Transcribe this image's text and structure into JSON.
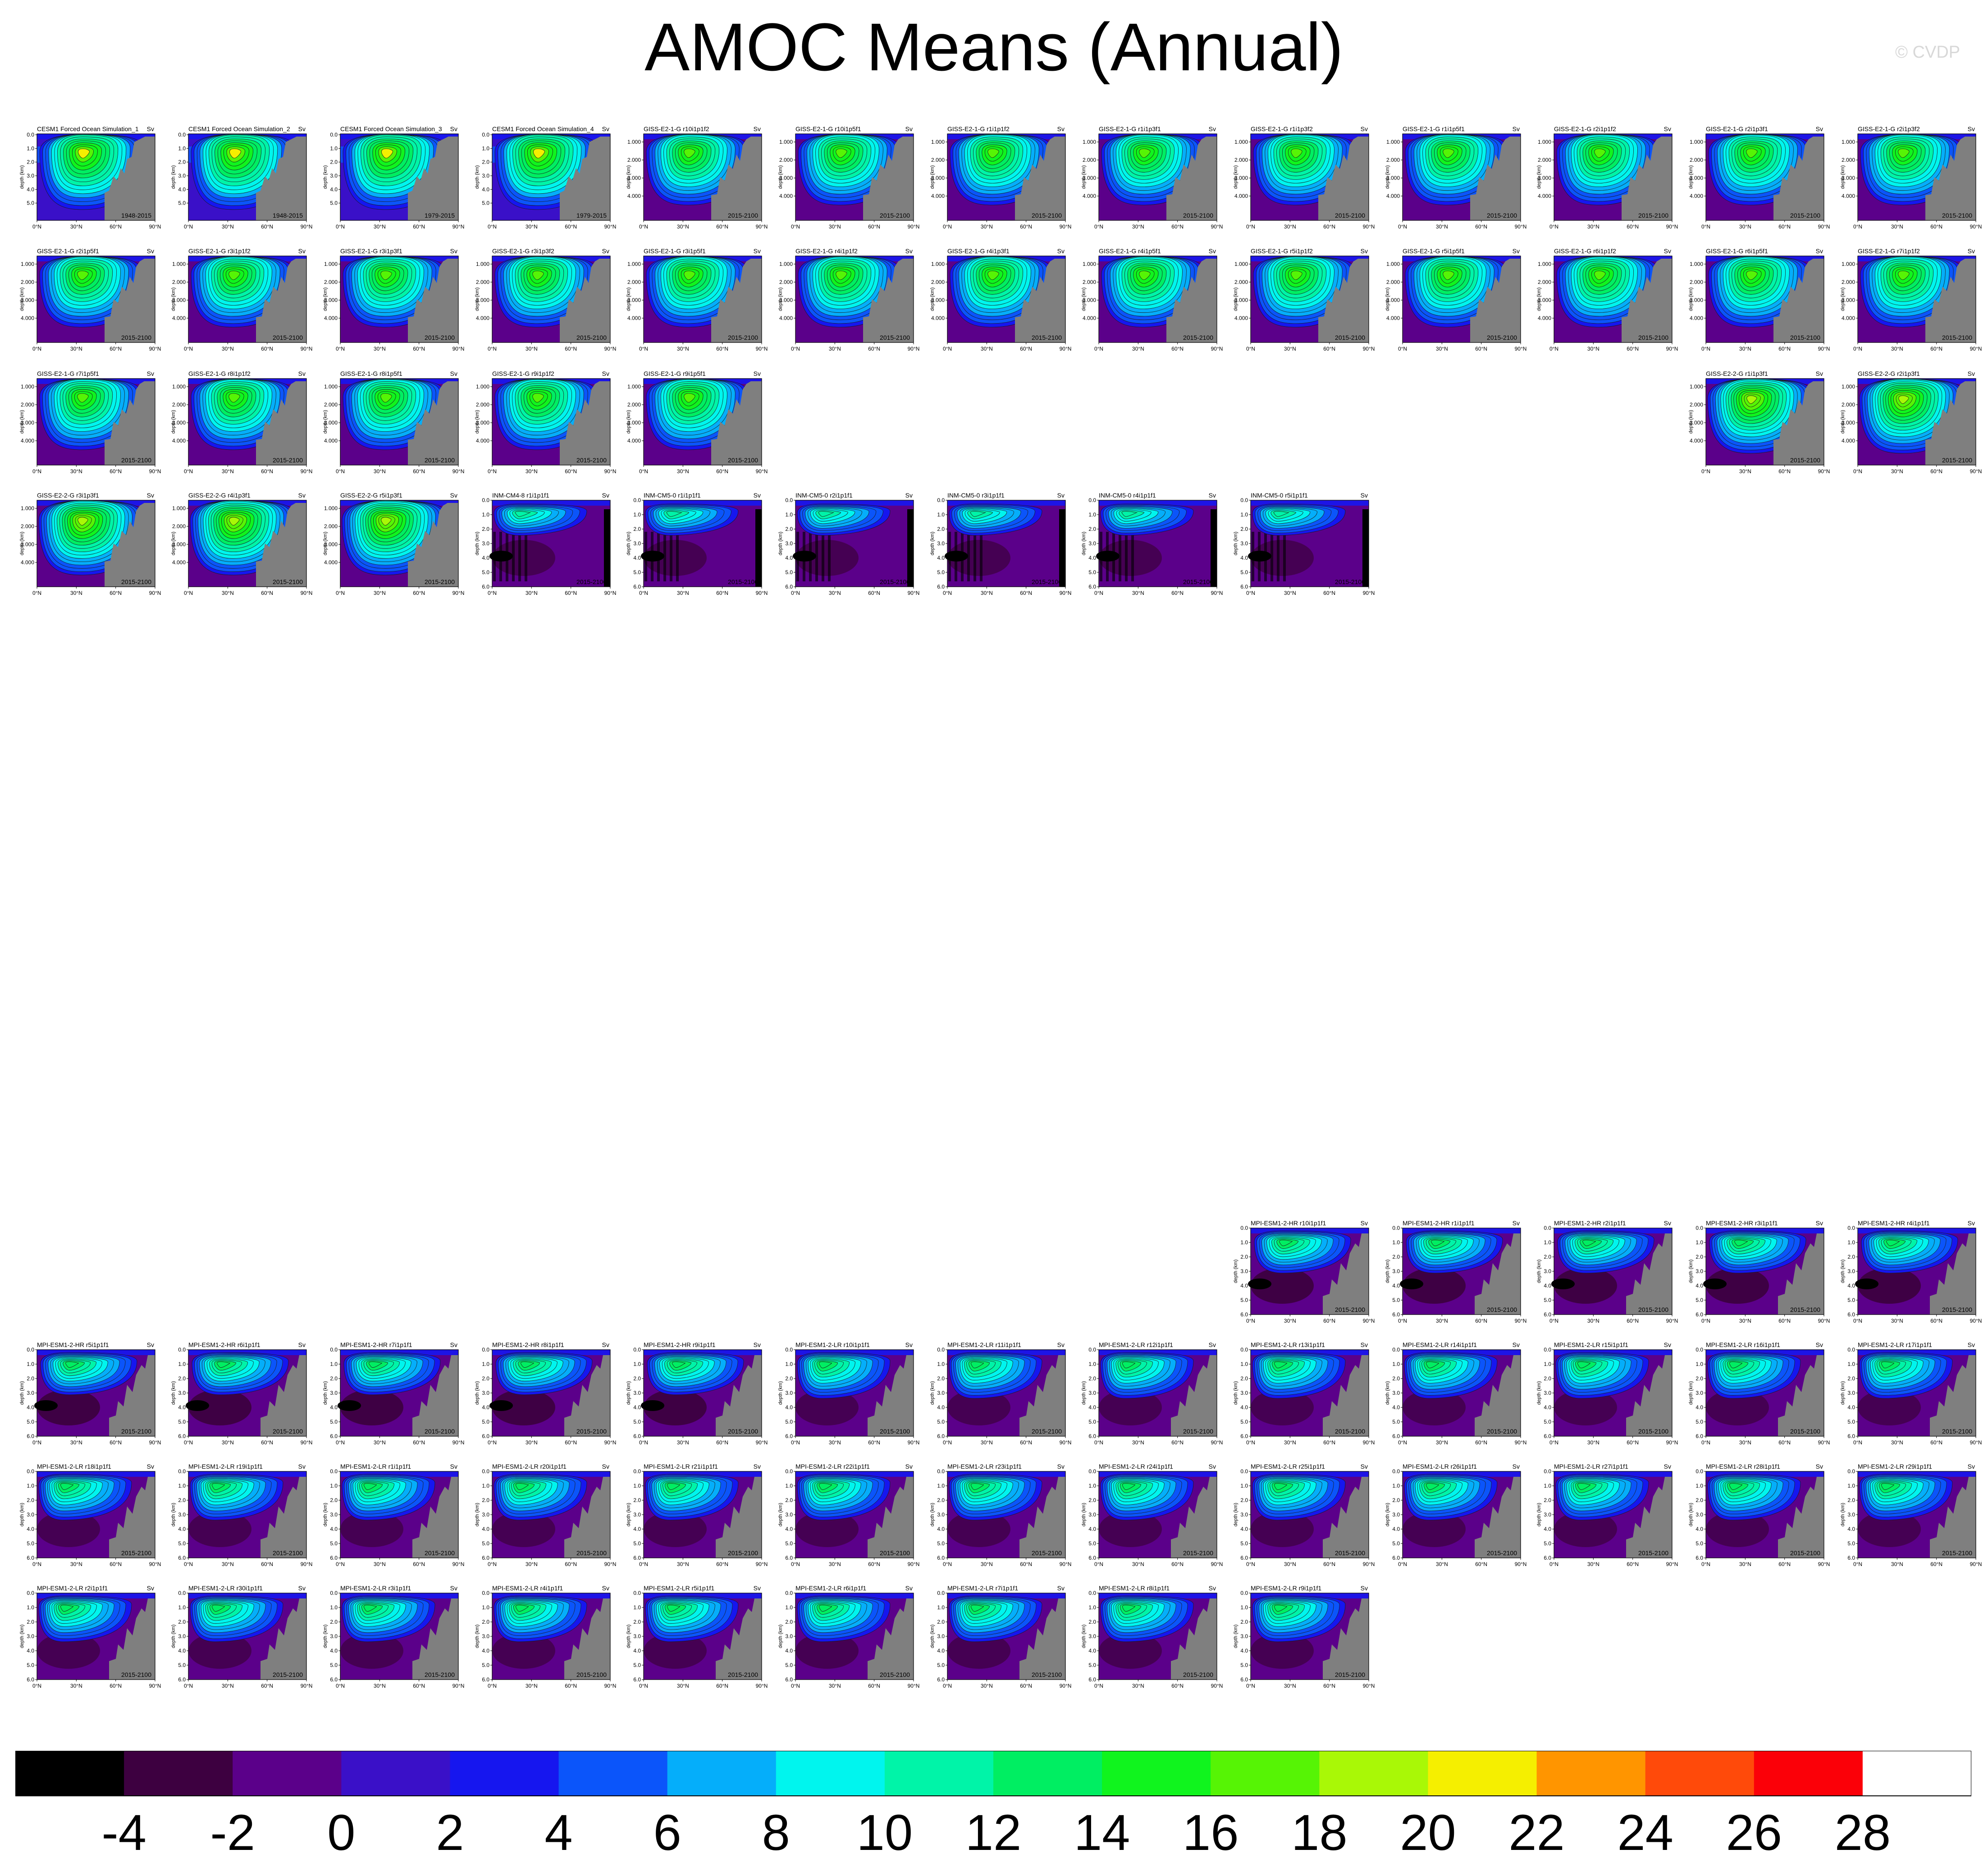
{
  "title": "AMOC Means (Annual)",
  "credit": "© CVDP",
  "chart_data": {
    "type": "heatmap",
    "title": "AMOC Means (Annual)",
    "units": "Sv",
    "x_axis": {
      "label": "",
      "ticks": [
        "0°N",
        "30°N",
        "60°N",
        "90°N"
      ],
      "range": [
        0,
        90
      ]
    },
    "y_axis": {
      "label": "depth (km)"
    },
    "colorbar": {
      "ticks": [
        "-4",
        "-2",
        "0",
        "2",
        "4",
        "6",
        "8",
        "10",
        "12",
        "14",
        "16",
        "18",
        "20",
        "22",
        "24",
        "26",
        "28"
      ],
      "colors": [
        "#000000",
        "#3d0040",
        "#5b008a",
        "#3a10c8",
        "#1616ef",
        "#0b55fa",
        "#05aefa",
        "#00f5ee",
        "#00f4a8",
        "#00ee62",
        "#10f41e",
        "#56f405",
        "#a9f806",
        "#f5ef00",
        "#ff9500",
        "#ff4a0a",
        "#fb0008",
        "#ffffff"
      ]
    },
    "depth_ticks": {
      "cesm": [
        "0.0",
        "1.0",
        "2.0",
        "3.0",
        "4.0",
        "5.0"
      ],
      "giss": [
        "1.000",
        "2.000",
        "3.000",
        "4.000"
      ],
      "deep": [
        "0.0",
        "1.0",
        "2.0",
        "3.0",
        "4.0",
        "5.0",
        "6.0"
      ]
    },
    "panels": [
      {
        "name": "CESM1 Forced Ocean Simulation_1",
        "period": "1948-2015",
        "style": "cesm"
      },
      {
        "name": "CESM1 Forced Ocean Simulation_2",
        "period": "1948-2015",
        "style": "cesm"
      },
      {
        "name": "CESM1 Forced Ocean Simulation_3",
        "period": "1979-2015",
        "style": "cesm"
      },
      {
        "name": "CESM1 Forced Ocean Simulation_4",
        "period": "1979-2015",
        "style": "cesm"
      },
      {
        "name": "GISS-E2-1-G r10i1p1f2",
        "period": "2015-2100",
        "style": "giss"
      },
      {
        "name": "GISS-E2-1-G r10i1p5f1",
        "period": "2015-2100",
        "style": "giss"
      },
      {
        "name": "GISS-E2-1-G r1i1p1f2",
        "period": "2015-2100",
        "style": "giss"
      },
      {
        "name": "GISS-E2-1-G r1i1p3f1",
        "period": "2015-2100",
        "style": "giss"
      },
      {
        "name": "GISS-E2-1-G r1i1p3f2",
        "period": "2015-2100",
        "style": "giss"
      },
      {
        "name": "GISS-E2-1-G r1i1p5f1",
        "period": "2015-2100",
        "style": "giss"
      },
      {
        "name": "GISS-E2-1-G r2i1p1f2",
        "period": "2015-2100",
        "style": "giss"
      },
      {
        "name": "GISS-E2-1-G r2i1p3f1",
        "period": "2015-2100",
        "style": "giss"
      },
      {
        "name": "GISS-E2-1-G r2i1p3f2",
        "period": "2015-2100",
        "style": "giss"
      },
      {
        "name": "GISS-E2-1-G r2i1p5f1",
        "period": "2015-2100",
        "style": "giss"
      },
      {
        "name": "GISS-E2-1-G r3i1p1f2",
        "period": "2015-2100",
        "style": "giss"
      },
      {
        "name": "GISS-E2-1-G r3i1p3f1",
        "period": "2015-2100",
        "style": "giss"
      },
      {
        "name": "GISS-E2-1-G r3i1p3f2",
        "period": "2015-2100",
        "style": "giss"
      },
      {
        "name": "GISS-E2-1-G r3i1p5f1",
        "period": "2015-2100",
        "style": "giss"
      },
      {
        "name": "GISS-E2-1-G r4i1p1f2",
        "period": "2015-2100",
        "style": "giss"
      },
      {
        "name": "GISS-E2-1-G r4i1p3f1",
        "period": "2015-2100",
        "style": "giss"
      },
      {
        "name": "GISS-E2-1-G r4i1p5f1",
        "period": "2015-2100",
        "style": "giss"
      },
      {
        "name": "GISS-E2-1-G r5i1p1f2",
        "period": "2015-2100",
        "style": "giss"
      },
      {
        "name": "GISS-E2-1-G r5i1p5f1",
        "period": "2015-2100",
        "style": "giss"
      },
      {
        "name": "GISS-E2-1-G r6i1p1f2",
        "period": "2015-2100",
        "style": "giss"
      },
      {
        "name": "GISS-E2-1-G r6i1p5f1",
        "period": "2015-2100",
        "style": "giss"
      },
      {
        "name": "GISS-E2-1-G r7i1p1f2",
        "period": "2015-2100",
        "style": "giss"
      },
      {
        "name": "GISS-E2-1-G r7i1p5f1",
        "period": "2015-2100",
        "style": "giss"
      },
      {
        "name": "GISS-E2-1-G r8i1p1f2",
        "period": "2015-2100",
        "style": "giss"
      },
      {
        "name": "GISS-E2-1-G r8i1p5f1",
        "period": "2015-2100",
        "style": "giss"
      },
      {
        "name": "GISS-E2-1-G r9i1p1f2",
        "period": "2015-2100",
        "style": "giss"
      },
      {
        "name": "GISS-E2-1-G r9i1p5f1",
        "period": "2015-2100",
        "style": "giss"
      },
      {
        "name": "GISS-E2-2-G r1i1p3f1",
        "period": "2015-2100",
        "style": "giss2"
      },
      {
        "name": "GISS-E2-2-G r2i1p3f1",
        "period": "2015-2100",
        "style": "giss2"
      },
      {
        "name": "GISS-E2-2-G r3i1p3f1",
        "period": "2015-2100",
        "style": "giss2"
      },
      {
        "name": "GISS-E2-2-G r4i1p3f1",
        "period": "2015-2100",
        "style": "giss2"
      },
      {
        "name": "GISS-E2-2-G r5i1p3f1",
        "period": "2015-2100",
        "style": "giss2"
      },
      {
        "name": "INM-CM4-8 r1i1p1f1",
        "period": "2015-2100",
        "style": "inm"
      },
      {
        "name": "INM-CM5-0 r1i1p1f1",
        "period": "2015-2100",
        "style": "inm"
      },
      {
        "name": "INM-CM5-0 r2i1p1f1",
        "period": "2015-2100",
        "style": "inm"
      },
      {
        "name": "INM-CM5-0 r3i1p1f1",
        "period": "2015-2100",
        "style": "inm"
      },
      {
        "name": "INM-CM5-0 r4i1p1f1",
        "period": "2015-2100",
        "style": "inm"
      },
      {
        "name": "INM-CM5-0 r5i1p1f1",
        "period": "2015-2100",
        "style": "inm"
      },
      {
        "name": "MPI-ESM1-2-HR r10i1p1f1",
        "period": "2015-2100",
        "style": "hr"
      },
      {
        "name": "MPI-ESM1-2-HR r1i1p1f1",
        "period": "2015-2100",
        "style": "hr"
      },
      {
        "name": "MPI-ESM1-2-HR r2i1p1f1",
        "period": "2015-2100",
        "style": "hr"
      },
      {
        "name": "MPI-ESM1-2-HR r3i1p1f1",
        "period": "2015-2100",
        "style": "hr"
      },
      {
        "name": "MPI-ESM1-2-HR r4i1p1f1",
        "period": "2015-2100",
        "style": "hr"
      },
      {
        "name": "MPI-ESM1-2-HR r5i1p1f1",
        "period": "2015-2100",
        "style": "hr"
      },
      {
        "name": "MPI-ESM1-2-HR r6i1p1f1",
        "period": "2015-2100",
        "style": "hr"
      },
      {
        "name": "MPI-ESM1-2-HR r7i1p1f1",
        "period": "2015-2100",
        "style": "hr"
      },
      {
        "name": "MPI-ESM1-2-HR r8i1p1f1",
        "period": "2015-2100",
        "style": "hr"
      },
      {
        "name": "MPI-ESM1-2-HR r9i1p1f1",
        "period": "2015-2100",
        "style": "hr"
      },
      {
        "name": "MPI-ESM1-2-LR r10i1p1f1",
        "period": "2015-2100",
        "style": "lr"
      },
      {
        "name": "MPI-ESM1-2-LR r11i1p1f1",
        "period": "2015-2100",
        "style": "lr"
      },
      {
        "name": "MPI-ESM1-2-LR r12i1p1f1",
        "period": "2015-2100",
        "style": "lr"
      },
      {
        "name": "MPI-ESM1-2-LR r13i1p1f1",
        "period": "2015-2100",
        "style": "lr"
      },
      {
        "name": "MPI-ESM1-2-LR r14i1p1f1",
        "period": "2015-2100",
        "style": "lr"
      },
      {
        "name": "MPI-ESM1-2-LR r15i1p1f1",
        "period": "2015-2100",
        "style": "lr"
      },
      {
        "name": "MPI-ESM1-2-LR r16i1p1f1",
        "period": "2015-2100",
        "style": "lr"
      },
      {
        "name": "MPI-ESM1-2-LR r17i1p1f1",
        "period": "2015-2100",
        "style": "lr"
      },
      {
        "name": "MPI-ESM1-2-LR r18i1p1f1",
        "period": "2015-2100",
        "style": "lr"
      },
      {
        "name": "MPI-ESM1-2-LR r19i1p1f1",
        "period": "2015-2100",
        "style": "lr"
      },
      {
        "name": "MPI-ESM1-2-LR r1i1p1f1",
        "period": "2015-2100",
        "style": "lr"
      },
      {
        "name": "MPI-ESM1-2-LR r20i1p1f1",
        "period": "2015-2100",
        "style": "lr"
      },
      {
        "name": "MPI-ESM1-2-LR r21i1p1f1",
        "period": "2015-2100",
        "style": "lr"
      },
      {
        "name": "MPI-ESM1-2-LR r22i1p1f1",
        "period": "2015-2100",
        "style": "lr"
      },
      {
        "name": "MPI-ESM1-2-LR r23i1p1f1",
        "period": "2015-2100",
        "style": "lr"
      },
      {
        "name": "MPI-ESM1-2-LR r24i1p1f1",
        "period": "2015-2100",
        "style": "lr"
      },
      {
        "name": "MPI-ESM1-2-LR r25i1p1f1",
        "period": "2015-2100",
        "style": "lr"
      },
      {
        "name": "MPI-ESM1-2-LR r26i1p1f1",
        "period": "2015-2100",
        "style": "lr"
      },
      {
        "name": "MPI-ESM1-2-LR r27i1p1f1",
        "period": "2015-2100",
        "style": "lr"
      },
      {
        "name": "MPI-ESM1-2-LR r28i1p1f1",
        "period": "2015-2100",
        "style": "lr"
      },
      {
        "name": "MPI-ESM1-2-LR r29i1p1f1",
        "period": "2015-2100",
        "style": "lr"
      },
      {
        "name": "MPI-ESM1-2-LR r2i1p1f1",
        "period": "2015-2100",
        "style": "lr"
      },
      {
        "name": "MPI-ESM1-2-LR r30i1p1f1",
        "period": "2015-2100",
        "style": "lr"
      },
      {
        "name": "MPI-ESM1-2-LR r3i1p1f1",
        "period": "2015-2100",
        "style": "lr"
      },
      {
        "name": "MPI-ESM1-2-LR r4i1p1f1",
        "period": "2015-2100",
        "style": "lr"
      },
      {
        "name": "MPI-ESM1-2-LR r5i1p1f1",
        "period": "2015-2100",
        "style": "lr"
      },
      {
        "name": "MPI-ESM1-2-LR r6i1p1f1",
        "period": "2015-2100",
        "style": "lr"
      },
      {
        "name": "MPI-ESM1-2-LR r7i1p1f1",
        "period": "2015-2100",
        "style": "lr"
      },
      {
        "name": "MPI-ESM1-2-LR r8i1p1f1",
        "period": "2015-2100",
        "style": "lr"
      },
      {
        "name": "MPI-ESM1-2-LR r9i1p1f1",
        "period": "2015-2100",
        "style": "lr"
      }
    ]
  }
}
